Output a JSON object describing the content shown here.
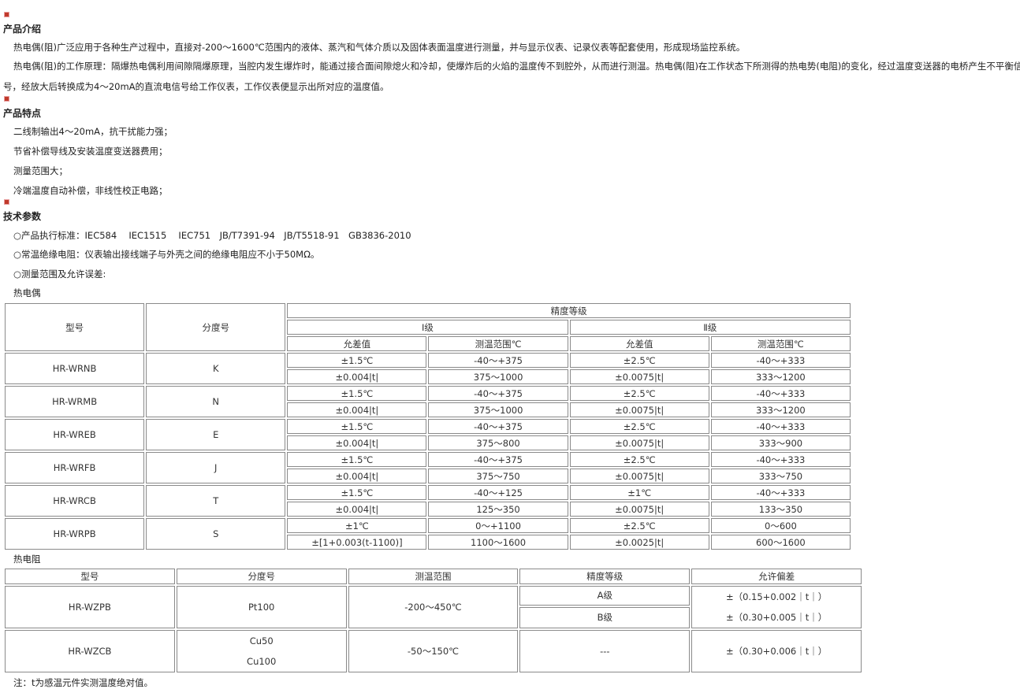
{
  "intro": {
    "title": "产品介绍",
    "paragraphs": [
      "热电偶(阻)广泛应用于各种生产过程中，直接对-200～1600℃范围内的液体、蒸汽和气体介质以及固体表面温度进行测量，并与显示仪表、记录仪表等配套使用，形成现场监控系统。",
      "热电偶(阻)的工作原理：隔爆热电偶利用间隙隔爆原理，当腔内发生爆炸时，能通过接合面间隙熄火和冷却，使爆炸后的火焰的温度传不到腔外，从而进行测温。热电偶(阻)在工作状态下所测得的热电势(电阻)的变化，经过温度变送器的电桥产生不平衡信",
      "号，经放大后转换成为4～20mA的直流电信号给工作仪表，工作仪表便显示出所对应的温度值。"
    ]
  },
  "features": {
    "title": "产品特点",
    "items": [
      "二线制输出4～20mA，抗干扰能力强；",
      "节省补偿导线及安装温度变送器费用；",
      "测量范围大；",
      "冷端温度自动补偿，非线性校正电路；"
    ]
  },
  "specs": {
    "title": "技术参数",
    "items": [
      "○产品执行标准：IEC584　 IEC1515　 IEC751　JB/T7391-94　JB/T5518-91　GB3836-2010",
      "○常温绝缘电阻：仪表输出接线端子与外壳之间的绝缘电阻应不小于50MΩ。",
      "○测量范围及允许误差:"
    ]
  },
  "thermocouple": {
    "label": "热电偶",
    "headers": {
      "model": "型号",
      "graduation": "分度号",
      "accuracy": "精度等级",
      "class1": "Ⅰ级",
      "class2": "Ⅱ级",
      "tol": "允差值",
      "range": "测温范围℃"
    },
    "rows": [
      {
        "model": "HR-WRNB",
        "grad": "K",
        "r1": [
          "±1.5℃",
          "-40～+375",
          "±2.5℃",
          "-40～+333"
        ],
        "r2": [
          "±0.004|t|",
          "375～1000",
          "±0.0075|t|",
          "333～1200"
        ]
      },
      {
        "model": "HR-WRMB",
        "grad": "N",
        "r1": [
          "±1.5℃",
          "-40～+375",
          "±2.5℃",
          "-40～+333"
        ],
        "r2": [
          "±0.004|t|",
          "375～1000",
          "±0.0075|t|",
          "333～1200"
        ]
      },
      {
        "model": "HR-WREB",
        "grad": "E",
        "r1": [
          "±1.5℃",
          "-40～+375",
          "±2.5℃",
          "-40～+333"
        ],
        "r2": [
          "±0.004|t|",
          "375～800",
          "±0.0075|t|",
          "333～900"
        ]
      },
      {
        "model": "HR-WRFB",
        "grad": "J",
        "r1": [
          "±1.5℃",
          "-40～+375",
          "±2.5℃",
          "-40～+333"
        ],
        "r2": [
          "±0.004|t|",
          "375～750",
          "±0.0075|t|",
          "333～750"
        ]
      },
      {
        "model": "HR-WRCB",
        "grad": "T",
        "r1": [
          "±1.5℃",
          "-40～+125",
          "±1℃",
          "-40～+333"
        ],
        "r2": [
          "±0.004|t|",
          "125～350",
          "±0.0075|t|",
          "133～350"
        ]
      },
      {
        "model": "HR-WRPB",
        "grad": "S",
        "r1": [
          "±1℃",
          "0～+1100",
          "±2.5℃",
          "0～600"
        ],
        "r2": [
          "±[1+0.003(t-1100)]",
          "1100～1600",
          "±0.0025|t|",
          "600～1600"
        ]
      }
    ]
  },
  "rtd": {
    "label": "热电阻",
    "headers": [
      "型号",
      "分度号",
      "测温范围",
      "精度等级",
      "允许偏差"
    ],
    "row1": {
      "model": "HR-WZPB",
      "grad": "Pt100",
      "range": "-200～450℃",
      "classA": "A级",
      "classB": "B级",
      "devA": "±（0.15+0.002｜t｜）",
      "devB": "±（0.30+0.005｜t｜）"
    },
    "row2": {
      "model": "HR-WZCB",
      "grad1": "Cu50",
      "grad2": "Cu100",
      "range": "-50～150℃",
      "class": "---",
      "dev": "±（0.30+0.006｜t｜）"
    }
  },
  "note": "注：t为感温元件实测温度绝对值。"
}
